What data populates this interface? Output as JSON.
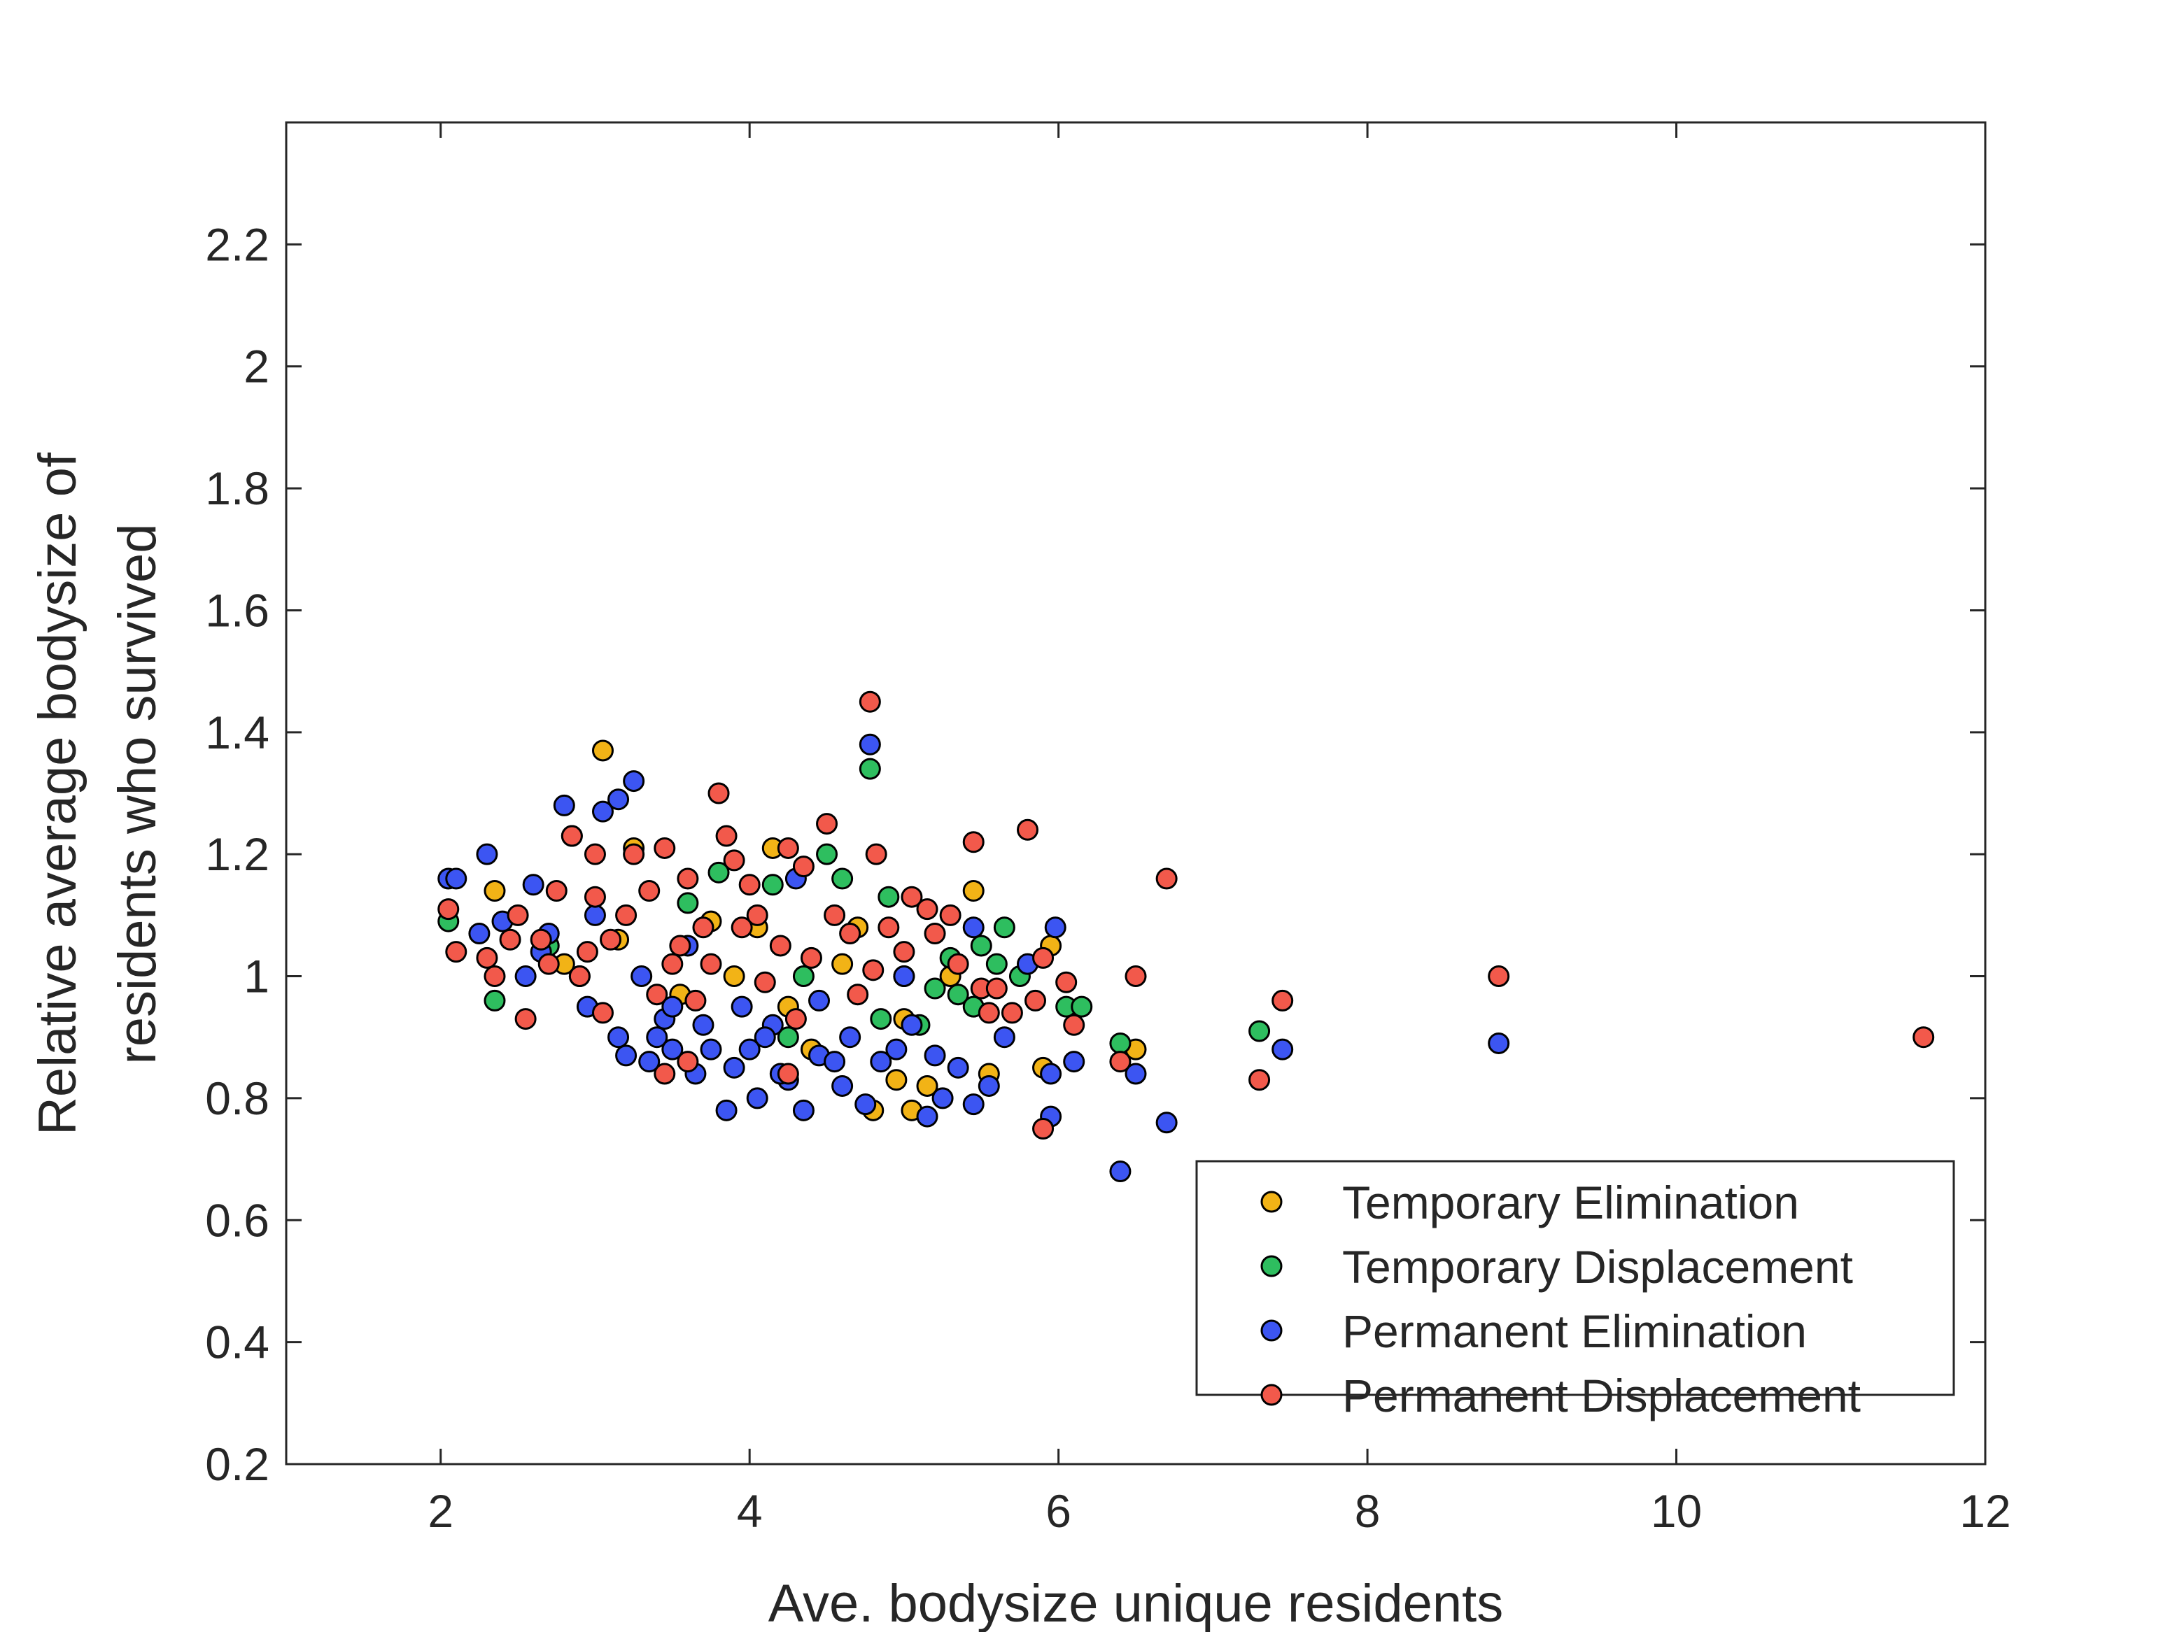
{
  "chart_data": {
    "type": "scatter",
    "xlabel": "Ave. bodysize unique residents",
    "ylabel_lines": [
      "Relative average bodysize of",
      "residents who survived"
    ],
    "xlim": [
      1,
      12
    ],
    "ylim": [
      0.2,
      2.4
    ],
    "xticks": [
      2,
      4,
      6,
      8,
      10,
      12
    ],
    "yticks": [
      0.2,
      0.4,
      0.6,
      0.8,
      1,
      1.2,
      1.4,
      1.6,
      1.8,
      2,
      2.2
    ],
    "xtick_labels": [
      "2",
      "4",
      "6",
      "8",
      "10",
      "12"
    ],
    "ytick_labels": [
      "0.2",
      "0.4",
      "0.6",
      "0.8",
      "1",
      "1.2",
      "1.4",
      "1.6",
      "1.8",
      "2",
      "2.2"
    ],
    "grid": false,
    "legend_position": "bottom-right",
    "series": [
      {
        "name": "Temporary Elimination",
        "color": "#F2B316",
        "points": [
          [
            3.05,
            1.37
          ],
          [
            2.35,
            1.14
          ],
          [
            3.15,
            1.06
          ],
          [
            3.25,
            1.21
          ],
          [
            3.75,
            1.09
          ],
          [
            4.15,
            1.21
          ],
          [
            4.8,
            0.78
          ],
          [
            4.95,
            0.83
          ],
          [
            5.05,
            0.78
          ],
          [
            5.45,
            1.14
          ],
          [
            5.55,
            0.84
          ],
          [
            5.9,
            0.85
          ],
          [
            5.95,
            1.05
          ],
          [
            6.5,
            0.88
          ],
          [
            4.25,
            0.95
          ],
          [
            4.6,
            1.02
          ],
          [
            5.0,
            0.93
          ],
          [
            3.9,
            1.0
          ],
          [
            4.4,
            0.88
          ],
          [
            5.15,
            0.82
          ],
          [
            2.8,
            1.02
          ],
          [
            3.55,
            0.97
          ],
          [
            4.7,
            1.08
          ],
          [
            5.3,
            1.0
          ],
          [
            4.05,
            1.08
          ]
        ]
      },
      {
        "name": "Temporary Displacement",
        "color": "#2EBE5F",
        "points": [
          [
            2.05,
            1.09
          ],
          [
            2.35,
            0.96
          ],
          [
            2.85,
            1.23
          ],
          [
            3.8,
            1.17
          ],
          [
            4.15,
            1.15
          ],
          [
            4.5,
            1.2
          ],
          [
            4.6,
            1.16
          ],
          [
            4.78,
            1.34
          ],
          [
            4.9,
            1.13
          ],
          [
            5.0,
            1.0
          ],
          [
            5.1,
            0.92
          ],
          [
            5.3,
            1.03
          ],
          [
            5.45,
            0.95
          ],
          [
            5.5,
            1.05
          ],
          [
            5.65,
            1.08
          ],
          [
            5.75,
            1.0
          ],
          [
            6.05,
            0.95
          ],
          [
            6.15,
            0.95
          ],
          [
            6.4,
            0.89
          ],
          [
            7.3,
            0.91
          ],
          [
            5.2,
            0.98
          ],
          [
            4.35,
            1.0
          ],
          [
            3.6,
            1.12
          ],
          [
            2.7,
            1.05
          ],
          [
            5.35,
            0.97
          ],
          [
            4.85,
            0.93
          ],
          [
            5.6,
            1.02
          ],
          [
            4.25,
            0.9
          ]
        ]
      },
      {
        "name": "Permanent Elimination",
        "color": "#3C55F2",
        "points": [
          [
            2.05,
            1.16
          ],
          [
            2.1,
            1.16
          ],
          [
            2.3,
            1.2
          ],
          [
            2.25,
            1.07
          ],
          [
            2.4,
            1.09
          ],
          [
            2.6,
            1.15
          ],
          [
            2.55,
            1.0
          ],
          [
            2.7,
            1.07
          ],
          [
            2.8,
            1.28
          ],
          [
            2.9,
            1.0
          ],
          [
            2.95,
            0.95
          ],
          [
            3.05,
            1.27
          ],
          [
            3.15,
            1.29
          ],
          [
            3.25,
            1.32
          ],
          [
            3.2,
            0.87
          ],
          [
            3.35,
            0.86
          ],
          [
            3.45,
            0.93
          ],
          [
            3.5,
            0.95
          ],
          [
            3.65,
            0.84
          ],
          [
            3.75,
            0.88
          ],
          [
            3.85,
            0.78
          ],
          [
            3.95,
            0.95
          ],
          [
            4.05,
            0.8
          ],
          [
            4.15,
            0.92
          ],
          [
            4.25,
            0.83
          ],
          [
            4.35,
            0.78
          ],
          [
            4.45,
            0.87
          ],
          [
            4.55,
            0.86
          ],
          [
            4.65,
            0.9
          ],
          [
            4.75,
            0.79
          ],
          [
            4.78,
            1.38
          ],
          [
            4.85,
            0.86
          ],
          [
            4.95,
            0.88
          ],
          [
            5.05,
            0.92
          ],
          [
            5.15,
            0.77
          ],
          [
            5.25,
            0.8
          ],
          [
            5.35,
            0.85
          ],
          [
            5.45,
            0.79
          ],
          [
            5.45,
            1.08
          ],
          [
            5.55,
            0.82
          ],
          [
            5.65,
            0.9
          ],
          [
            5.8,
            1.02
          ],
          [
            5.95,
            0.84
          ],
          [
            5.98,
            1.08
          ],
          [
            5.95,
            0.77
          ],
          [
            6.1,
            0.86
          ],
          [
            6.4,
            0.68
          ],
          [
            6.5,
            0.84
          ],
          [
            6.7,
            0.76
          ],
          [
            7.45,
            0.88
          ],
          [
            8.85,
            0.89
          ],
          [
            3.0,
            1.1
          ],
          [
            3.3,
            1.0
          ],
          [
            3.6,
            1.05
          ],
          [
            3.4,
            0.9
          ],
          [
            3.7,
            0.92
          ],
          [
            4.0,
            0.88
          ],
          [
            4.3,
            1.16
          ],
          [
            4.1,
            0.9
          ],
          [
            3.9,
            0.85
          ],
          [
            4.6,
            0.82
          ],
          [
            5.0,
            1.0
          ],
          [
            5.2,
            0.87
          ],
          [
            4.45,
            0.96
          ],
          [
            3.15,
            0.9
          ],
          [
            2.65,
            1.04
          ],
          [
            3.5,
            0.88
          ],
          [
            4.2,
            0.84
          ]
        ]
      },
      {
        "name": "Permanent Displacement",
        "color": "#F2594B",
        "points": [
          [
            2.05,
            1.11
          ],
          [
            2.1,
            1.04
          ],
          [
            2.3,
            1.03
          ],
          [
            2.35,
            1.0
          ],
          [
            2.5,
            1.1
          ],
          [
            2.55,
            0.93
          ],
          [
            2.65,
            1.06
          ],
          [
            2.75,
            1.14
          ],
          [
            2.85,
            1.23
          ],
          [
            2.9,
            1.0
          ],
          [
            3.0,
            1.2
          ],
          [
            3.05,
            0.94
          ],
          [
            3.1,
            1.06
          ],
          [
            3.25,
            1.2
          ],
          [
            3.35,
            1.14
          ],
          [
            3.45,
            1.21
          ],
          [
            3.5,
            1.02
          ],
          [
            3.6,
            1.16
          ],
          [
            3.7,
            1.08
          ],
          [
            3.8,
            1.3
          ],
          [
            3.85,
            1.23
          ],
          [
            3.9,
            1.19
          ],
          [
            4.0,
            1.15
          ],
          [
            4.05,
            1.1
          ],
          [
            4.2,
            1.05
          ],
          [
            4.25,
            1.21
          ],
          [
            4.35,
            1.18
          ],
          [
            4.5,
            1.25
          ],
          [
            4.55,
            1.1
          ],
          [
            4.65,
            1.07
          ],
          [
            4.78,
            1.45
          ],
          [
            4.82,
            1.2
          ],
          [
            4.9,
            1.08
          ],
          [
            5.05,
            1.13
          ],
          [
            5.15,
            1.11
          ],
          [
            5.2,
            1.07
          ],
          [
            5.3,
            1.1
          ],
          [
            5.45,
            1.22
          ],
          [
            5.5,
            0.98
          ],
          [
            5.55,
            0.94
          ],
          [
            5.6,
            0.98
          ],
          [
            5.7,
            0.94
          ],
          [
            5.8,
            1.24
          ],
          [
            5.85,
            0.96
          ],
          [
            5.9,
            1.03
          ],
          [
            5.9,
            0.75
          ],
          [
            6.05,
            0.99
          ],
          [
            6.1,
            0.92
          ],
          [
            6.4,
            0.86
          ],
          [
            6.5,
            1.0
          ],
          [
            6.7,
            1.16
          ],
          [
            7.3,
            0.83
          ],
          [
            7.45,
            0.96
          ],
          [
            8.85,
            1.0
          ],
          [
            11.6,
            0.9
          ],
          [
            3.2,
            1.1
          ],
          [
            3.55,
            1.05
          ],
          [
            3.75,
            1.02
          ],
          [
            4.1,
            0.99
          ],
          [
            4.4,
            1.03
          ],
          [
            4.7,
            0.97
          ],
          [
            5.0,
            1.04
          ],
          [
            3.4,
            0.97
          ],
          [
            2.95,
            1.04
          ],
          [
            3.65,
            0.96
          ],
          [
            4.3,
            0.93
          ],
          [
            4.8,
            1.01
          ],
          [
            5.35,
            1.02
          ],
          [
            3.45,
            0.84
          ],
          [
            3.6,
            0.86
          ],
          [
            4.25,
            0.84
          ],
          [
            2.45,
            1.06
          ],
          [
            2.7,
            1.02
          ],
          [
            3.0,
            1.13
          ],
          [
            3.95,
            1.08
          ]
        ]
      }
    ]
  }
}
